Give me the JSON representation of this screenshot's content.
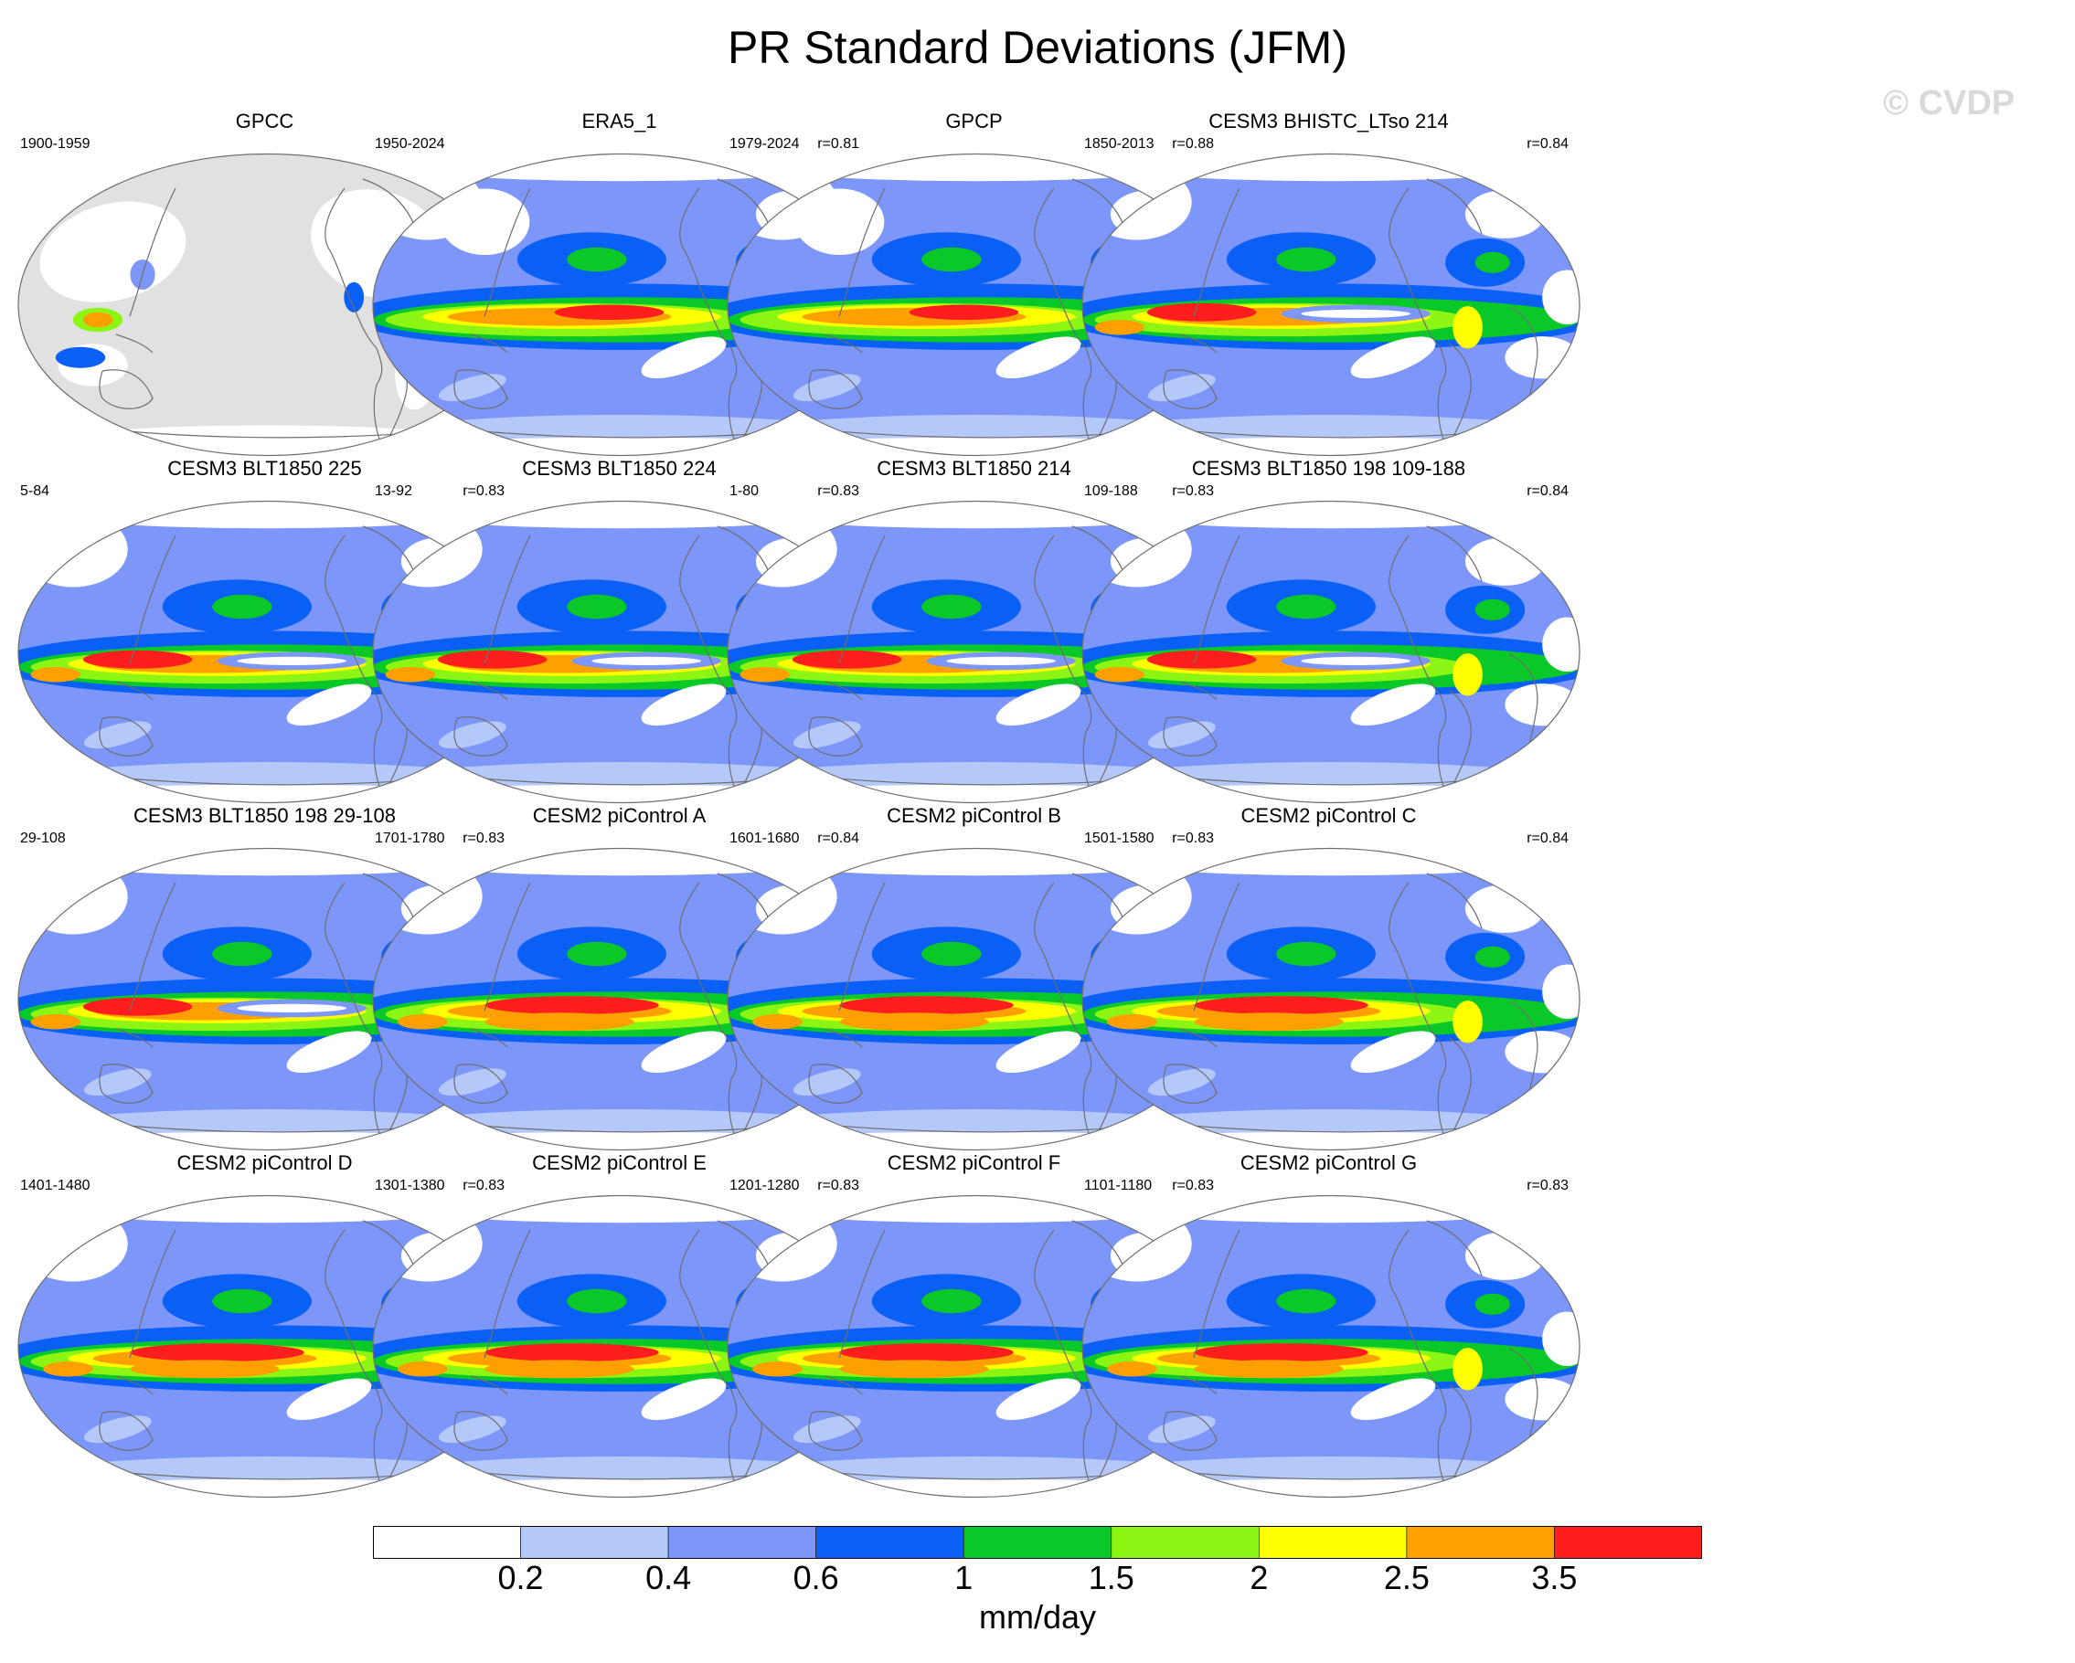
{
  "title": "PR Standard Deviations (JFM)",
  "watermark": "© CVDP",
  "panels": [
    {
      "title": "GPCC",
      "period": "1900-1959",
      "r": "",
      "pattern": "land"
    },
    {
      "title": "ERA5_1",
      "period": "1950-2024",
      "r": "r=0.81",
      "pattern": "obs"
    },
    {
      "title": "GPCP",
      "period": "1979-2024",
      "r": "r=0.88",
      "pattern": "obs"
    },
    {
      "title": "CESM3 BHISTC_LTso 214",
      "period": "1850-2013",
      "r": "r=0.84",
      "pattern": "cesm3"
    },
    {
      "title": "CESM3 BLT1850 225",
      "period": "5-84",
      "r": "r=0.83",
      "pattern": "cesm3"
    },
    {
      "title": "CESM3 BLT1850 224",
      "period": "13-92",
      "r": "r=0.83",
      "pattern": "cesm3"
    },
    {
      "title": "CESM3 BLT1850 214",
      "period": "1-80",
      "r": "r=0.83",
      "pattern": "cesm3"
    },
    {
      "title": "CESM3 BLT1850 198 109-188",
      "period": "109-188",
      "r": "r=0.84",
      "pattern": "cesm3"
    },
    {
      "title": "CESM3 BLT1850 198 29-108",
      "period": "29-108",
      "r": "r=0.83",
      "pattern": "cesm3"
    },
    {
      "title": "CESM2 piControl A",
      "period": "1701-1780",
      "r": "r=0.84",
      "pattern": "cesm2"
    },
    {
      "title": "CESM2 piControl B",
      "period": "1601-1680",
      "r": "r=0.83",
      "pattern": "cesm2"
    },
    {
      "title": "CESM2 piControl C",
      "period": "1501-1580",
      "r": "r=0.84",
      "pattern": "cesm2"
    },
    {
      "title": "CESM2 piControl D",
      "period": "1401-1480",
      "r": "r=0.83",
      "pattern": "cesm2"
    },
    {
      "title": "CESM2 piControl E",
      "period": "1301-1380",
      "r": "r=0.83",
      "pattern": "cesm2"
    },
    {
      "title": "CESM2 piControl F",
      "period": "1201-1280",
      "r": "r=0.83",
      "pattern": "cesm2"
    },
    {
      "title": "CESM2 piControl G",
      "period": "1101-1180",
      "r": "r=0.83",
      "pattern": "cesm2"
    }
  ],
  "colorbar": {
    "units": "mm/day",
    "ticks": [
      "0.2",
      "0.4",
      "0.6",
      "1",
      "1.5",
      "2",
      "2.5",
      "3.5"
    ],
    "colors": [
      "#ffffff",
      "#b4c8fa",
      "#7d96fa",
      "#0a5ff5",
      "#0ac828",
      "#8cf514",
      "#ffff00",
      "#ffa000",
      "#ff1e1e"
    ]
  },
  "colors": {
    "land_missing": "#e1e1e1",
    "coast": "#6e6e6e"
  }
}
